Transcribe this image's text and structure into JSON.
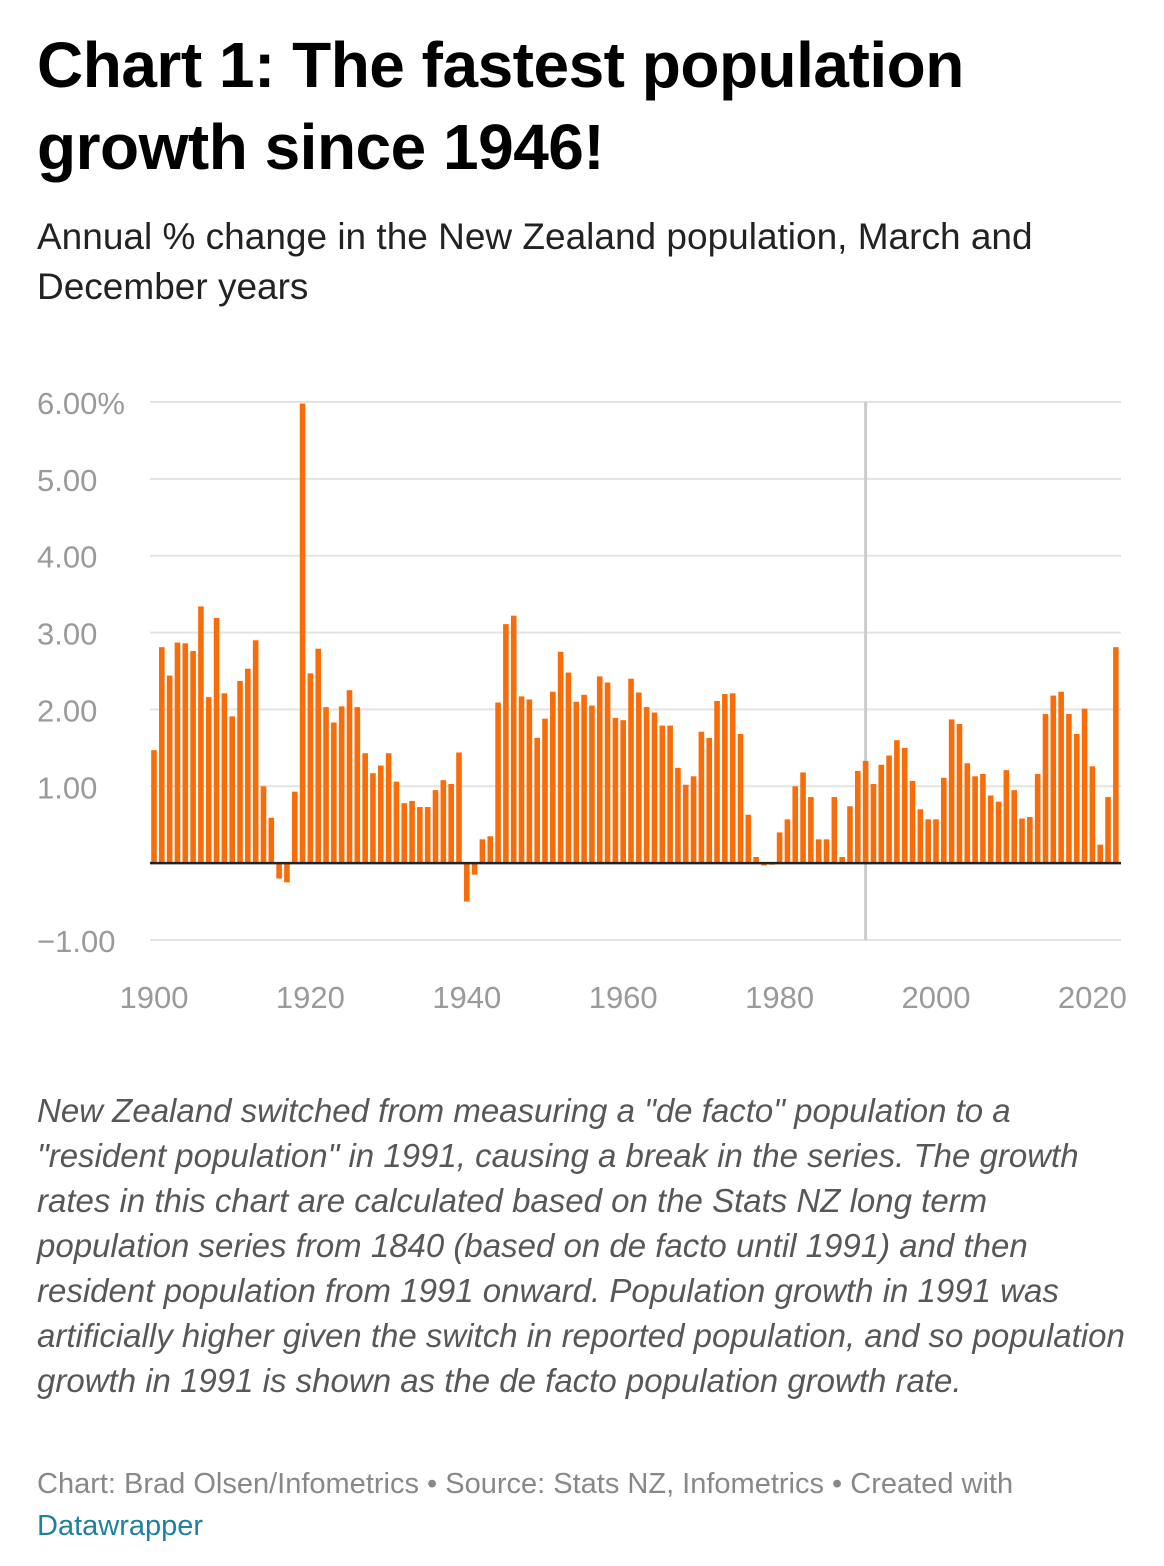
{
  "title": "Chart 1: The fastest population growth since 1946!",
  "subtitle": "Annual % change in the New Zealand population, March and December years",
  "notes": "New Zealand switched from measuring a \"de facto\" population to a \"resident population\" in 1991, causing a break in the series. The growth rates in this chart are calculated based on the Stats NZ long term population series from 1840 (based on de facto until 1991) and then resident population from 1991 onward. Population growth in 1991 was artificially higher given the switch in reported population, and so population growth in 1991 is shown as the de facto population growth rate.",
  "byline": {
    "chart_by": "Chart: Brad Olsen/Infometrics",
    "source": "Source: Stats NZ, Infometrics",
    "created_with": "Created with",
    "tool_link": "Datawrapper"
  },
  "colors": {
    "bar": "#f86d0a",
    "grid": "#e3e3e3",
    "axis_text": "#9a9a9a",
    "break_line": "#cccccc",
    "zero_line": "#222222"
  },
  "chart_data": {
    "type": "bar",
    "title": "Chart 1: The fastest population growth since 1946!",
    "ylabel": "Annual % change",
    "ylim": [
      -1.0,
      6.0
    ],
    "y_ticks": [
      {
        "value": 6,
        "label": "6.00%"
      },
      {
        "value": 5,
        "label": "5.00"
      },
      {
        "value": 4,
        "label": "4.00"
      },
      {
        "value": 3,
        "label": "3.00"
      },
      {
        "value": 2,
        "label": "2.00"
      },
      {
        "value": 1,
        "label": "1.00"
      },
      {
        "value": -1,
        "label": "−1.00"
      }
    ],
    "x_ticks": [
      "1900",
      "1920",
      "1940",
      "1960",
      "1980",
      "2000",
      "2020"
    ],
    "series_break_year": 1991,
    "x": [
      1900,
      1901,
      1902,
      1903,
      1904,
      1905,
      1906,
      1907,
      1908,
      1909,
      1910,
      1911,
      1912,
      1913,
      1914,
      1915,
      1916,
      1917,
      1918,
      1919,
      1920,
      1921,
      1922,
      1923,
      1924,
      1925,
      1926,
      1927,
      1928,
      1929,
      1930,
      1931,
      1932,
      1933,
      1934,
      1935,
      1936,
      1937,
      1938,
      1939,
      1940,
      1941,
      1942,
      1943,
      1944,
      1945,
      1946,
      1947,
      1948,
      1949,
      1950,
      1951,
      1952,
      1953,
      1954,
      1955,
      1956,
      1957,
      1958,
      1959,
      1960,
      1961,
      1962,
      1963,
      1964,
      1965,
      1966,
      1967,
      1968,
      1969,
      1970,
      1971,
      1972,
      1973,
      1974,
      1975,
      1976,
      1977,
      1978,
      1979,
      1980,
      1981,
      1982,
      1983,
      1984,
      1985,
      1986,
      1987,
      1988,
      1989,
      1990,
      1991,
      1992,
      1993,
      1994,
      1995,
      1996,
      1997,
      1998,
      1999,
      2000,
      2001,
      2002,
      2003,
      2004,
      2005,
      2006,
      2007,
      2008,
      2009,
      2010,
      2011,
      2012,
      2013,
      2014,
      2015,
      2016,
      2017,
      2018,
      2019,
      2020,
      2021,
      2022,
      2023
    ],
    "values": [
      1.47,
      2.81,
      2.44,
      2.87,
      2.86,
      2.76,
      3.34,
      2.16,
      3.19,
      2.21,
      1.91,
      2.37,
      2.53,
      2.9,
      1.0,
      0.59,
      -0.2,
      -0.25,
      0.93,
      5.98,
      2.47,
      2.79,
      2.03,
      1.83,
      2.04,
      2.25,
      2.03,
      1.43,
      1.17,
      1.27,
      1.43,
      1.06,
      0.78,
      0.81,
      0.73,
      0.73,
      0.95,
      1.08,
      1.03,
      1.44,
      -0.5,
      -0.15,
      0.31,
      0.35,
      2.09,
      3.11,
      3.22,
      2.17,
      2.13,
      1.63,
      1.88,
      2.23,
      2.75,
      2.48,
      2.1,
      2.19,
      2.05,
      2.43,
      2.35,
      1.89,
      1.86,
      2.4,
      2.22,
      2.03,
      1.96,
      1.79,
      1.79,
      1.24,
      1.02,
      1.13,
      1.71,
      1.63,
      2.11,
      2.2,
      2.21,
      1.68,
      0.63,
      0.08,
      -0.03,
      -0.02,
      0.4,
      0.57,
      1.0,
      1.18,
      0.86,
      0.31,
      0.31,
      0.86,
      0.08,
      0.74,
      1.2,
      1.33,
      1.03,
      1.28,
      1.4,
      1.6,
      1.5,
      1.07,
      0.7,
      0.57,
      0.57,
      1.11,
      1.87,
      1.81,
      1.3,
      1.13,
      1.16,
      0.88,
      0.8,
      1.21,
      0.95,
      0.58,
      0.6,
      1.16,
      1.94,
      2.18,
      2.23,
      1.94,
      1.68,
      2.01,
      1.26,
      0.24,
      0.86,
      2.81
    ]
  }
}
